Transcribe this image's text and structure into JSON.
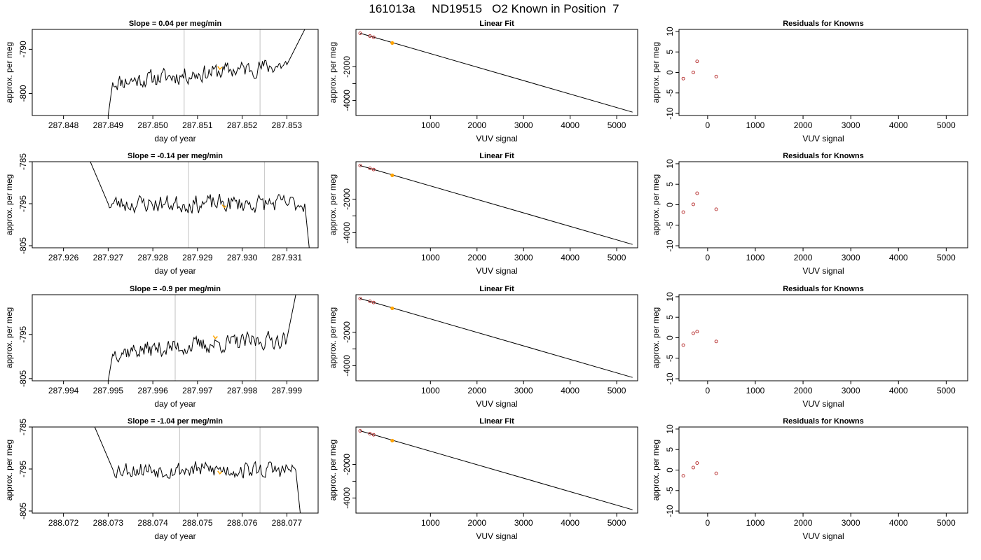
{
  "title": "161013a     ND19515   O2 Known in Position  7",
  "colors": {
    "trace": "#000000",
    "highlight": "#FFA500",
    "marker": "#B22222",
    "reference": "#CCCCCC",
    "fit": "#000000"
  },
  "chart_data": [
    {
      "type": "line",
      "panel": "time-series",
      "row": 0,
      "title": "Slope =  0.04  per meg/min",
      "xlabel": "day of year",
      "ylabel": "approx. per meg",
      "xlim": [
        287.8473,
        287.8537
      ],
      "ylim": [
        -805,
        -785.5
      ],
      "xticks": [
        287.848,
        287.849,
        287.85,
        287.851,
        287.852,
        287.853
      ],
      "xtick_labels": [
        "287.848",
        "287.849",
        "287.850",
        "287.851",
        "287.852",
        "287.853"
      ],
      "yticks": [
        -800,
        -790
      ],
      "ytick_labels": [
        "-800",
        "-790"
      ],
      "vlines": [
        287.8507,
        287.8524
      ],
      "highlight": [
        287.8515,
        -794.2
      ],
      "trace_start": [
        287.849,
        -805
      ],
      "trace_rise_to": [
        287.8491,
        -797.5
      ],
      "trace_mid_start": -797.5,
      "trace_mid_end": -793.5,
      "trace_mid_until": 287.853,
      "trace_end": [
        287.8534,
        -785.5
      ],
      "noise": 2.2,
      "seed": 11
    },
    {
      "type": "scatter",
      "panel": "linear-fit",
      "row": 0,
      "title": "Linear Fit",
      "xlabel": "VUV signal",
      "ylabel": "approx. per meg",
      "xlim": [
        -600,
        5450
      ],
      "ylim": [
        -4900,
        230
      ],
      "xticks": [
        1000,
        2000,
        3000,
        4000,
        5000
      ],
      "xtick_labels": [
        "1000",
        "2000",
        "3000",
        "4000",
        "5000"
      ],
      "yticks": [
        -4000,
        -3000,
        -2000
      ],
      "ytick_labels": [
        "-4000",
        "",
        "-2000"
      ],
      "fit_line": {
        "x": [
          -510,
          5340
        ],
        "y": [
          0,
          -4700
        ]
      },
      "points": {
        "x": [
          -510,
          -300,
          -220,
          180
        ],
        "y": [
          0,
          -165,
          -235,
          -580
        ]
      },
      "highlight_point": {
        "x": 180,
        "y": -580
      }
    },
    {
      "type": "scatter",
      "panel": "residuals",
      "row": 0,
      "title": "Residuals for Knowns",
      "xlabel": "VUV signal",
      "ylabel": "approx. per meg",
      "xlim": [
        -600,
        5450
      ],
      "ylim": [
        -10.5,
        10.5
      ],
      "xticks": [
        0,
        1000,
        2000,
        3000,
        4000,
        5000
      ],
      "xtick_labels": [
        "0",
        "1000",
        "2000",
        "3000",
        "4000",
        "5000"
      ],
      "yticks": [
        -10,
        -5,
        0,
        5,
        10
      ],
      "ytick_labels": [
        "-10",
        "-5",
        "0",
        "5",
        "10"
      ],
      "x": [
        -510,
        -300,
        -220,
        180
      ],
      "y": [
        -1.5,
        0.0,
        2.7,
        -1.0
      ]
    },
    {
      "type": "line",
      "panel": "time-series",
      "row": 1,
      "title": "Slope =  -0.14  per meg/min",
      "xlabel": "day of year",
      "ylabel": "approx. per meg",
      "xlim": [
        287.9253,
        287.9317
      ],
      "ylim": [
        -805.5,
        -785
      ],
      "xticks": [
        287.926,
        287.927,
        287.928,
        287.929,
        287.93,
        287.931
      ],
      "xtick_labels": [
        "287.926",
        "287.927",
        "287.928",
        "287.929",
        "287.930",
        "287.931"
      ],
      "yticks": [
        -805,
        -795,
        -785
      ],
      "ytick_labels": [
        "-805",
        "-795",
        "-785"
      ],
      "vlines": [
        287.9288,
        287.9305
      ],
      "highlight": [
        287.9296,
        -795.6
      ],
      "trace_start": [
        287.9266,
        -785
      ],
      "trace_rise_to": [
        287.927,
        -795
      ],
      "trace_mid_start": -795,
      "trace_mid_end": -795,
      "trace_mid_until": 287.9314,
      "trace_end": [
        287.9315,
        -805.5
      ],
      "noise": 2.4,
      "seed": 23
    },
    {
      "type": "scatter",
      "panel": "linear-fit",
      "row": 1,
      "title": "Linear Fit",
      "xlabel": "VUV signal",
      "ylabel": "approx. per meg",
      "xlim": [
        -600,
        5450
      ],
      "ylim": [
        -4900,
        230
      ],
      "xticks": [
        1000,
        2000,
        3000,
        4000,
        5000
      ],
      "xtick_labels": [
        "1000",
        "2000",
        "3000",
        "4000",
        "5000"
      ],
      "yticks": [
        -4000,
        -3000,
        -2000
      ],
      "ytick_labels": [
        "-4000",
        "",
        "-2000"
      ],
      "fit_line": {
        "x": [
          -510,
          5340
        ],
        "y": [
          0,
          -4700
        ]
      },
      "points": {
        "x": [
          -510,
          -300,
          -220,
          180
        ],
        "y": [
          0,
          -165,
          -235,
          -580
        ]
      },
      "highlight_point": {
        "x": 180,
        "y": -580
      }
    },
    {
      "type": "scatter",
      "panel": "residuals",
      "row": 1,
      "title": "Residuals for Knowns",
      "xlabel": "VUV signal",
      "ylabel": "approx. per meg",
      "xlim": [
        -600,
        5450
      ],
      "ylim": [
        -10.5,
        10.5
      ],
      "xticks": [
        0,
        1000,
        2000,
        3000,
        4000,
        5000
      ],
      "xtick_labels": [
        "0",
        "1000",
        "2000",
        "3000",
        "4000",
        "5000"
      ],
      "yticks": [
        -10,
        -5,
        0,
        5,
        10
      ],
      "ytick_labels": [
        "-10",
        "-5",
        "0",
        "5",
        "10"
      ],
      "x": [
        -510,
        -300,
        -220,
        180
      ],
      "y": [
        -1.8,
        0.1,
        2.8,
        -1.1
      ]
    },
    {
      "type": "line",
      "panel": "time-series",
      "row": 2,
      "title": "Slope =  -0.9  per meg/min",
      "xlabel": "day of year",
      "ylabel": "approx. per meg",
      "xlim": [
        287.9933,
        287.9997
      ],
      "ylim": [
        -805.5,
        -786
      ],
      "xticks": [
        287.994,
        287.995,
        287.996,
        287.997,
        287.998,
        287.999
      ],
      "xtick_labels": [
        "287.994",
        "287.995",
        "287.996",
        "287.997",
        "287.998",
        "287.999"
      ],
      "yticks": [
        -805,
        -795
      ],
      "ytick_labels": [
        "-805",
        "-795"
      ],
      "vlines": [
        287.9965,
        287.9983
      ],
      "highlight": [
        287.9974,
        -795.6
      ],
      "trace_start": [
        287.995,
        -805.5
      ],
      "trace_rise_to": [
        287.9951,
        -799.5
      ],
      "trace_mid_start": -799,
      "trace_mid_end": -796,
      "trace_mid_until": 287.999,
      "trace_end": [
        287.9992,
        -786
      ],
      "noise": 2.2,
      "seed": 37
    },
    {
      "type": "scatter",
      "panel": "linear-fit",
      "row": 2,
      "title": "Linear Fit",
      "xlabel": "VUV signal",
      "ylabel": "approx. per meg",
      "xlim": [
        -600,
        5450
      ],
      "ylim": [
        -4900,
        230
      ],
      "xticks": [
        1000,
        2000,
        3000,
        4000,
        5000
      ],
      "xtick_labels": [
        "1000",
        "2000",
        "3000",
        "4000",
        "5000"
      ],
      "yticks": [
        -4000,
        -3000,
        -2000
      ],
      "ytick_labels": [
        "-4000",
        "",
        "-2000"
      ],
      "fit_line": {
        "x": [
          -510,
          5340
        ],
        "y": [
          0,
          -4700
        ]
      },
      "points": {
        "x": [
          -510,
          -300,
          -220,
          180
        ],
        "y": [
          0,
          -165,
          -235,
          -580
        ]
      },
      "highlight_point": {
        "x": 180,
        "y": -580
      }
    },
    {
      "type": "scatter",
      "panel": "residuals",
      "row": 2,
      "title": "Residuals for Knowns",
      "xlabel": "VUV signal",
      "ylabel": "approx. per meg",
      "xlim": [
        -600,
        5450
      ],
      "ylim": [
        -10.5,
        10.5
      ],
      "xticks": [
        0,
        1000,
        2000,
        3000,
        4000,
        5000
      ],
      "xtick_labels": [
        "0",
        "1000",
        "2000",
        "3000",
        "4000",
        "5000"
      ],
      "yticks": [
        -10,
        -5,
        0,
        5,
        10
      ],
      "ytick_labels": [
        "-10",
        "-5",
        "0",
        "5",
        "10"
      ],
      "x": [
        -510,
        -300,
        -220,
        180
      ],
      "y": [
        -1.8,
        1.1,
        1.5,
        -0.9
      ]
    },
    {
      "type": "line",
      "panel": "time-series",
      "row": 3,
      "title": "Slope =  -1.04  per meg/min",
      "xlabel": "day of year",
      "ylabel": "approx. per meg",
      "xlim": [
        288.0713,
        288.0777
      ],
      "ylim": [
        -805.5,
        -785
      ],
      "xticks": [
        288.072,
        288.073,
        288.074,
        288.075,
        288.076,
        288.077
      ],
      "xtick_labels": [
        "288.072",
        "288.073",
        "288.074",
        "288.075",
        "288.076",
        "288.077"
      ],
      "yticks": [
        -805,
        -795,
        -785
      ],
      "ytick_labels": [
        "-805",
        "-795",
        "-785"
      ],
      "vlines": [
        288.0746,
        288.0764
      ],
      "highlight": [
        288.0755,
        -795.8
      ],
      "trace_start": [
        288.0727,
        -785
      ],
      "trace_rise_to": [
        288.0731,
        -795
      ],
      "trace_mid_start": -795,
      "trace_mid_end": -795.3,
      "trace_mid_until": 288.0772,
      "trace_end": [
        288.0773,
        -805.5
      ],
      "noise": 2.3,
      "seed": 53
    },
    {
      "type": "scatter",
      "panel": "linear-fit",
      "row": 3,
      "title": "Linear Fit",
      "xlabel": "VUV signal",
      "ylabel": "approx. per meg",
      "xlim": [
        -600,
        5450
      ],
      "ylim": [
        -4900,
        230
      ],
      "xticks": [
        1000,
        2000,
        3000,
        4000,
        5000
      ],
      "xtick_labels": [
        "1000",
        "2000",
        "3000",
        "4000",
        "5000"
      ],
      "yticks": [
        -4000,
        -3000,
        -2000
      ],
      "ytick_labels": [
        "-4000",
        "",
        "-2000"
      ],
      "fit_line": {
        "x": [
          -510,
          5340
        ],
        "y": [
          0,
          -4700
        ]
      },
      "points": {
        "x": [
          -510,
          -300,
          -220,
          180
        ],
        "y": [
          0,
          -165,
          -235,
          -580
        ]
      },
      "highlight_point": {
        "x": 180,
        "y": -580
      }
    },
    {
      "type": "scatter",
      "panel": "residuals",
      "row": 3,
      "title": "Residuals for Knowns",
      "xlabel": "VUV signal",
      "ylabel": "approx. per meg",
      "xlim": [
        -600,
        5450
      ],
      "ylim": [
        -10.5,
        10.5
      ],
      "xticks": [
        0,
        1000,
        2000,
        3000,
        4000,
        5000
      ],
      "xtick_labels": [
        "0",
        "1000",
        "2000",
        "3000",
        "4000",
        "5000"
      ],
      "yticks": [
        -10,
        -5,
        0,
        5,
        10
      ],
      "ytick_labels": [
        "-10",
        "-5",
        "0",
        "5",
        "10"
      ],
      "x": [
        -510,
        -300,
        -220,
        180
      ],
      "y": [
        -1.4,
        0.6,
        1.7,
        -0.8
      ]
    }
  ]
}
